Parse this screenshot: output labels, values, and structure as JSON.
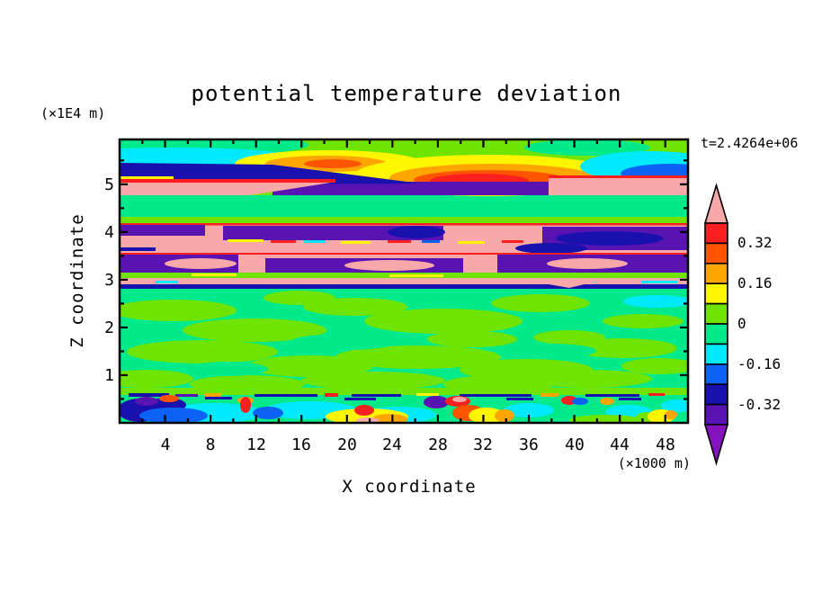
{
  "figure": {
    "title": "potential temperature deviation",
    "time_label": "t=2.4264e+06"
  },
  "x_axis": {
    "label": "X coordinate",
    "unit_label": "(×1000 m)",
    "range": [
      0,
      50
    ],
    "tick_labels": [
      "4",
      "8",
      "12",
      "16",
      "20",
      "24",
      "28",
      "32",
      "36",
      "40",
      "44",
      "48"
    ],
    "tick_values": [
      4,
      8,
      12,
      16,
      20,
      24,
      28,
      32,
      36,
      40,
      44,
      48
    ],
    "minor_tick_values": [
      2,
      6,
      10,
      14,
      18,
      22,
      26,
      30,
      34,
      38,
      42,
      46
    ]
  },
  "y_axis": {
    "label": "Z coordinate",
    "unit_label": "(×1E4 m)",
    "range": [
      0,
      5.94
    ],
    "tick_labels": [
      "1",
      "2",
      "3",
      "4",
      "5"
    ],
    "tick_values": [
      1,
      2,
      3,
      4,
      5
    ],
    "minor_tick_values": [
      0.5,
      1.5,
      2.5,
      3.5,
      4.5,
      5.5
    ]
  },
  "colorbar": {
    "tick_labels": [
      "0.32",
      "0.16",
      "0",
      "-0.16",
      "-0.32"
    ],
    "levels_top_to_bottom": [
      0.4,
      0.32,
      0.24,
      0.16,
      0.08,
      0,
      -0.08,
      -0.16,
      -0.24,
      -0.32,
      -0.4
    ],
    "segment_colors_top_to_bottom": [
      "#FB1F1F",
      "#FF5500",
      "#FFA500",
      "#FFF500",
      "#6FE400",
      "#00E98A",
      "#00E9FF",
      "#0B62F5",
      "#1A10AE",
      "#5813B2"
    ],
    "over_color": "#F8A8A8",
    "under_color": "#8512BE"
  },
  "palette": {
    "salmon": "#F8A8A8",
    "red": "#FB1F1F",
    "orange_red": "#FF5500",
    "orange": "#FFA500",
    "yellow": "#FFF500",
    "chartreuse": "#6FE400",
    "spring_green": "#00E98A",
    "cyan": "#00E9FF",
    "blue": "#0B62F5",
    "navy": "#1A10AE",
    "purple": "#5813B2",
    "violet": "#8512BE",
    "text": "#000000",
    "background": "#FFFFFF"
  },
  "chart_data": {
    "type": "heatmap",
    "title": "potential temperature deviation",
    "xlabel": "X coordinate",
    "ylabel": "Z coordinate",
    "x_unit": "×1000 m",
    "y_unit": "×1E4 m",
    "time_annotation": "t=2.4264e+06",
    "xlim": [
      0,
      50
    ],
    "ylim": [
      0,
      5.94
    ],
    "contour_levels": [
      -0.4,
      -0.32,
      -0.24,
      -0.16,
      -0.08,
      0,
      0.08,
      0.16,
      0.24,
      0.32,
      0.4
    ],
    "colorbar_labeled_levels": [
      0.32,
      0.16,
      0,
      -0.16,
      -0.32
    ],
    "legend_position": "right",
    "grid": false,
    "features": [
      {
        "z_range": [
          5.55,
          5.94
        ],
        "value_range": [
          0,
          0.08
        ],
        "note": "weak positive layer with warm plumes reaching 0.16–0.40 near x=13–23 and x=25–37, cool patch -0.08–-0.32 near x=44–50"
      },
      {
        "z_range": [
          5.35,
          5.6
        ],
        "value_range": [
          -0.32,
          -0.24
        ],
        "note": "cold navy band, strongest over x=0–16, thinning eastward"
      },
      {
        "z_range": [
          5.0,
          5.35
        ],
        "value_range": [
          -0.4,
          0.45
        ],
        "note": "salmon band >0.40 at x=0–20 and x=38–50; purple band -0.32–-0.40 at x=13–38 with sharp red rim"
      },
      {
        "z_range": [
          4.45,
          5.0
        ],
        "value_range": [
          -0.08,
          0.08
        ],
        "note": "quiet green layer"
      },
      {
        "z_range": [
          3.1,
          4.45
        ],
        "value_range": [
          -0.4,
          0.45
        ],
        "note": "stacked alternating salmon (>0.40) and purple (<-0.32) laminae with thin red/yellow/cyan rims and navy patches"
      },
      {
        "z_range": [
          2.85,
          3.0
        ],
        "value_range": [
          -0.32,
          -0.24
        ],
        "note": "thin navy line across full width; salmon wedge >0.40 near x=34–43"
      },
      {
        "z_range": [
          0.75,
          2.85
        ],
        "value_range": [
          -0.08,
          0.08
        ],
        "note": "mottled near-zero interior of spring-green and chartreuse patches"
      },
      {
        "z_range": [
          0.0,
          0.75
        ],
        "value_range": [
          -0.45,
          0.45
        ],
        "note": "turbulent boundary layer: small-scale extremes of both signs (navy/blue/cyan pools and yellow/orange/red/salmon plumes)"
      }
    ]
  }
}
